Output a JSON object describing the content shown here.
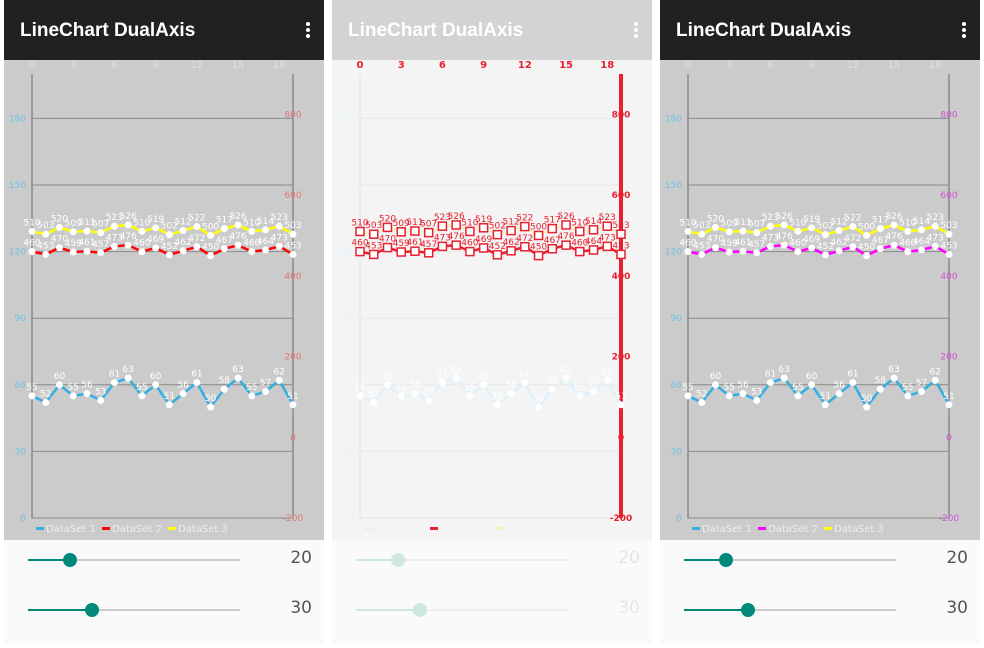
{
  "app": {
    "title": "LineChart DualAxis",
    "menu_icon": "more-vert-icon"
  },
  "chart_data": {
    "type": "line",
    "x": [
      0,
      1,
      2,
      3,
      4,
      5,
      6,
      7,
      8,
      9,
      10,
      11,
      12,
      13,
      14,
      15,
      16,
      17,
      18,
      19
    ],
    "x_ticks": [
      "0",
      "3",
      "6",
      "9",
      "12",
      "15",
      "18"
    ],
    "left_axis": {
      "range": [
        0,
        200
      ],
      "ticks": [
        "0",
        "30",
        "60",
        "90",
        "120",
        "150",
        "180"
      ]
    },
    "right_axis": {
      "range": [
        -200,
        900
      ],
      "ticks": [
        "-200",
        "0",
        "200",
        "400",
        "600",
        "800"
      ]
    },
    "grid": true,
    "legend": "bottom-left",
    "series": [
      {
        "name": "DataSet 1",
        "axis": "left",
        "values": [
          55,
          52,
          60,
          55,
          56,
          53,
          61,
          63,
          55,
          60,
          51,
          56,
          61,
          50,
          58,
          63,
          55,
          57,
          62,
          51
        ]
      },
      {
        "name": "DataSet 2",
        "axis": "right",
        "values": [
          460,
          453,
          470,
          459,
          461,
          457,
          473,
          476,
          460,
          469,
          452,
          462,
          472,
          450,
          467,
          476,
          460,
          464,
          473,
          453
        ]
      },
      {
        "name": "DataSet 3",
        "axis": "right",
        "values": [
          510,
          503,
          520,
          509,
          511,
          507,
          523,
          526,
          510,
          519,
          502,
          512,
          522,
          500,
          517,
          526,
          510,
          514,
          523,
          503
        ]
      }
    ]
  },
  "panels": [
    {
      "colors": [
        "#35aee2",
        "#ff0000",
        "#ffff00"
      ],
      "right_axis_color": "#e57373",
      "sliders": [
        20,
        30
      ],
      "slider_labels": [
        "20",
        "30"
      ]
    },
    {
      "colors": [
        "#dff2fb",
        "#e8202f",
        "#f2f2c0"
      ],
      "right_axis_color": "#e8202f",
      "sliders": [
        20,
        30
      ],
      "slider_labels": [
        "20",
        "30"
      ]
    },
    {
      "colors": [
        "#35aee2",
        "#ff00ff",
        "#ffff00"
      ],
      "right_axis_color": "#d64fd6",
      "sliders": [
        20,
        30
      ],
      "slider_labels": [
        "20",
        "30"
      ]
    }
  ],
  "slider_max": 100
}
